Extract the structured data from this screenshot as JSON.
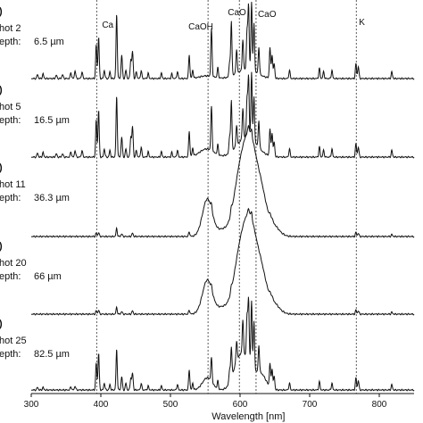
{
  "chart_data": {
    "type": "line",
    "xlabel": "Wavelength [nm]",
    "xlim": [
      300,
      850
    ],
    "x_ticks": [
      300,
      400,
      500,
      600,
      700,
      800
    ],
    "line_color": "#111111",
    "reference_lines": [
      {
        "label": "Ca",
        "x": 394
      },
      {
        "label": "CaOH",
        "x": 554
      },
      {
        "label": "CaO",
        "x": 599
      },
      {
        "label": "CaO",
        "x": 623
      },
      {
        "label": "K",
        "x": 767
      }
    ],
    "series": [
      {
        "panel": ")",
        "shot_label": "hot 2",
        "depth_label": "epth:",
        "depth_value": "6.5 µm",
        "peaks": [
          [
            309,
            0.06
          ],
          [
            317,
            0.07
          ],
          [
            336,
            0.05
          ],
          [
            345,
            0.06
          ],
          [
            357,
            0.09
          ],
          [
            363,
            0.12
          ],
          [
            373,
            0.1
          ],
          [
            393.4,
            0.5
          ],
          [
            396.8,
            0.62
          ],
          [
            405,
            0.12
          ],
          [
            413,
            0.1
          ],
          [
            422.7,
            0.95
          ],
          [
            430,
            0.35
          ],
          [
            436,
            0.12
          ],
          [
            443,
            0.28
          ],
          [
            445.5,
            0.4
          ],
          [
            451,
            0.1
          ],
          [
            458,
            0.12
          ],
          [
            468,
            0.08
          ],
          [
            487,
            0.08
          ],
          [
            502,
            0.07
          ],
          [
            510,
            0.1
          ],
          [
            527,
            0.35
          ],
          [
            532,
            0.12
          ],
          [
            558.9,
            0.7
          ],
          [
            568,
            0.15
          ],
          [
            585,
            0.22
          ],
          [
            587.5,
            0.8
          ],
          [
            595,
            0.35
          ],
          [
            604,
            0.45
          ],
          [
            610,
            0.55
          ],
          [
            612.2,
            0.95
          ],
          [
            616.5,
            1.0
          ],
          [
            620,
            0.7
          ],
          [
            627,
            0.4
          ],
          [
            643,
            0.45
          ],
          [
            646,
            0.35
          ],
          [
            649,
            0.22
          ],
          [
            671,
            0.12
          ],
          [
            714,
            0.15
          ],
          [
            720,
            0.1
          ],
          [
            732,
            0.12
          ],
          [
            766.5,
            0.22
          ],
          [
            769.9,
            0.18
          ],
          [
            818,
            0.1
          ]
        ],
        "bumps": [
          [
            552,
            10,
            0.04
          ],
          [
            610,
            14,
            0.14
          ]
        ]
      },
      {
        "panel": ")",
        "shot_label": "hot 5",
        "depth_label": "epth:",
        "depth_value": "16.5 µm",
        "peaks": [
          [
            309,
            0.06
          ],
          [
            317,
            0.07
          ],
          [
            336,
            0.05
          ],
          [
            345,
            0.05
          ],
          [
            357,
            0.08
          ],
          [
            363,
            0.1
          ],
          [
            373,
            0.1
          ],
          [
            393.4,
            0.55
          ],
          [
            396.8,
            0.7
          ],
          [
            405,
            0.12
          ],
          [
            413,
            0.1
          ],
          [
            422.7,
            0.9
          ],
          [
            430,
            0.3
          ],
          [
            436,
            0.12
          ],
          [
            443,
            0.3
          ],
          [
            445.5,
            0.45
          ],
          [
            451,
            0.1
          ],
          [
            458,
            0.15
          ],
          [
            468,
            0.08
          ],
          [
            487,
            0.08
          ],
          [
            502,
            0.07
          ],
          [
            510,
            0.1
          ],
          [
            527,
            0.38
          ],
          [
            532,
            0.12
          ],
          [
            558.9,
            0.65
          ],
          [
            568,
            0.15
          ],
          [
            585,
            0.25
          ],
          [
            587.5,
            0.75
          ],
          [
            595,
            0.3
          ],
          [
            604,
            0.45
          ],
          [
            610,
            0.55
          ],
          [
            612.2,
            0.9
          ],
          [
            616.5,
            0.98
          ],
          [
            620,
            0.65
          ],
          [
            627,
            0.4
          ],
          [
            643,
            0.4
          ],
          [
            646,
            0.35
          ],
          [
            649,
            0.22
          ],
          [
            671,
            0.12
          ],
          [
            714,
            0.15
          ],
          [
            720,
            0.1
          ],
          [
            732,
            0.12
          ],
          [
            766.5,
            0.2
          ],
          [
            769.9,
            0.15
          ],
          [
            818,
            0.1
          ]
        ],
        "bumps": [
          [
            552,
            10,
            0.12
          ],
          [
            610,
            14,
            0.3
          ]
        ]
      },
      {
        "panel": ")",
        "shot_label": "hot 11",
        "depth_label": "epth:",
        "depth_value": "36.3 µm",
        "peaks": [
          [
            393.4,
            0.05
          ],
          [
            396.8,
            0.06
          ],
          [
            422.7,
            0.12
          ],
          [
            430,
            0.04
          ],
          [
            445.5,
            0.05
          ],
          [
            527,
            0.07
          ],
          [
            558.9,
            0.08
          ],
          [
            587.5,
            0.08
          ],
          [
            612.2,
            0.1
          ],
          [
            616.5,
            0.1
          ],
          [
            643,
            0.06
          ],
          [
            646,
            0.05
          ],
          [
            766.5,
            0.06
          ],
          [
            769.9,
            0.05
          ],
          [
            818,
            0.03
          ]
        ],
        "bumps": [
          [
            553,
            7,
            0.55
          ],
          [
            575,
            9,
            0.1
          ],
          [
            597,
            8,
            0.62
          ],
          [
            608,
            8,
            0.8
          ],
          [
            618,
            8,
            0.95
          ],
          [
            631,
            7,
            0.5
          ],
          [
            646,
            9,
            0.18
          ]
        ]
      },
      {
        "panel": ")",
        "shot_label": "hot 20",
        "depth_label": "epth:",
        "depth_value": "66 µm",
        "peaks": [
          [
            393.4,
            0.05
          ],
          [
            396.8,
            0.06
          ],
          [
            422.7,
            0.1
          ],
          [
            430,
            0.04
          ],
          [
            445.5,
            0.05
          ],
          [
            527,
            0.06
          ],
          [
            558.9,
            0.06
          ],
          [
            587.5,
            0.07
          ],
          [
            612.2,
            0.08
          ],
          [
            616.5,
            0.09
          ],
          [
            643,
            0.05
          ],
          [
            646,
            0.05
          ],
          [
            766.5,
            0.06
          ],
          [
            769.9,
            0.05
          ],
          [
            818,
            0.03
          ]
        ],
        "bumps": [
          [
            553,
            7,
            0.5
          ],
          [
            575,
            9,
            0.1
          ],
          [
            597,
            8,
            0.6
          ],
          [
            608,
            8,
            0.78
          ],
          [
            618,
            8,
            0.9
          ],
          [
            631,
            7,
            0.48
          ],
          [
            646,
            9,
            0.18
          ]
        ]
      },
      {
        "panel": ")",
        "shot_label": "hot 25",
        "depth_label": "epth:",
        "depth_value": "82.5 µm",
        "peaks": [
          [
            309,
            0.04
          ],
          [
            317,
            0.04
          ],
          [
            357,
            0.05
          ],
          [
            363,
            0.06
          ],
          [
            393.4,
            0.4
          ],
          [
            396.8,
            0.55
          ],
          [
            405,
            0.1
          ],
          [
            413,
            0.08
          ],
          [
            422.7,
            0.6
          ],
          [
            430,
            0.2
          ],
          [
            436,
            0.1
          ],
          [
            443,
            0.18
          ],
          [
            445.5,
            0.25
          ],
          [
            458,
            0.1
          ],
          [
            468,
            0.06
          ],
          [
            487,
            0.06
          ],
          [
            510,
            0.08
          ],
          [
            527,
            0.3
          ],
          [
            532,
            0.1
          ],
          [
            558.9,
            0.35
          ],
          [
            568,
            0.12
          ],
          [
            585,
            0.2
          ],
          [
            587.5,
            0.45
          ],
          [
            595,
            0.3
          ],
          [
            604,
            0.5
          ],
          [
            610,
            0.6
          ],
          [
            612.2,
            0.9
          ],
          [
            616.5,
            0.95
          ],
          [
            620,
            0.7
          ],
          [
            627,
            0.4
          ],
          [
            643,
            0.35
          ],
          [
            646,
            0.3
          ],
          [
            649,
            0.2
          ],
          [
            671,
            0.1
          ],
          [
            714,
            0.12
          ],
          [
            732,
            0.1
          ],
          [
            766.5,
            0.18
          ],
          [
            769.9,
            0.14
          ],
          [
            818,
            0.08
          ]
        ],
        "bumps": [
          [
            553,
            7,
            0.18
          ],
          [
            597,
            8,
            0.3
          ],
          [
            610,
            10,
            0.4
          ],
          [
            631,
            7,
            0.2
          ]
        ]
      }
    ]
  }
}
